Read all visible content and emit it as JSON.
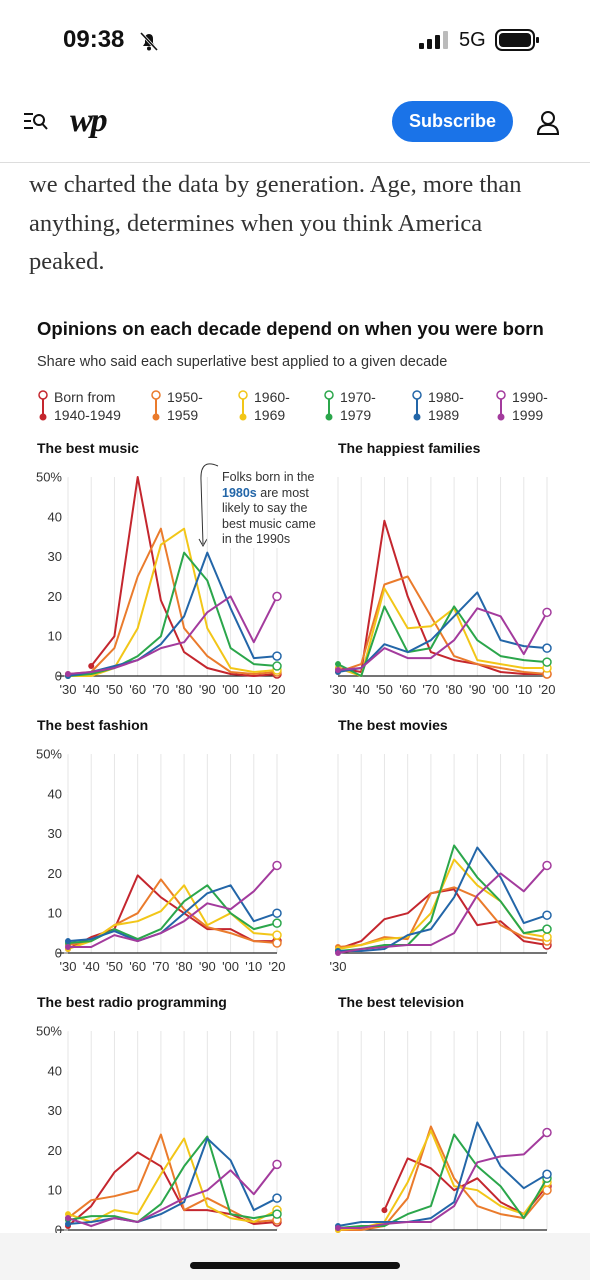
{
  "status_bar": {
    "time": "09:38",
    "network": "5G"
  },
  "nav": {
    "logo": "wp",
    "subscribe": "Subscribe"
  },
  "article": {
    "text": "we charted the data by generation. Age, more than anything, determines when you think America peaked."
  },
  "figure": {
    "title": "Opinions on each decade depend on when you were born",
    "subtitle": "Share who said each superlative best applied to a given decade",
    "legend": [
      {
        "name": "Born from 1940-1949",
        "color": "#c4262e"
      },
      {
        "name": "1950-1959",
        "color": "#ea7b2c"
      },
      {
        "name": "1960-1969",
        "color": "#f2c618"
      },
      {
        "name": "1970-1979",
        "color": "#2ba64b"
      },
      {
        "name": "1980-1989",
        "color": "#2366a8"
      },
      {
        "name": "1990-1999",
        "color": "#a33b9d"
      }
    ],
    "annotation": {
      "before": "Folks born in the",
      "highlight": "1980s",
      "after": "are most likely to say the best music came in the 1990s"
    }
  },
  "chart_data": [
    {
      "type": "line",
      "title": "The best music",
      "categories": [
        "'30",
        "'40",
        "'50",
        "'60",
        "'70",
        "'80",
        "'90",
        "'00",
        "'10",
        "'20"
      ],
      "ylim": [
        0,
        50
      ],
      "yticks": [
        0,
        10,
        20,
        30,
        40,
        {
          "value": 50,
          "label": "50%"
        }
      ],
      "series": [
        {
          "values": [
            null,
            2.5,
            10,
            50,
            19,
            6,
            2,
            0.5,
            0,
            0.5
          ]
        },
        {
          "values": [
            0.5,
            1,
            7,
            25,
            37,
            12,
            5,
            1,
            0.5,
            1
          ]
        },
        {
          "values": [
            0,
            0,
            2,
            12,
            33,
            37,
            12,
            2,
            1,
            1.5
          ]
        },
        {
          "values": [
            0,
            0.5,
            2,
            5,
            10,
            31,
            24,
            7,
            3,
            2.5
          ]
        },
        {
          "values": [
            0,
            1,
            2.5,
            4,
            8,
            15,
            31,
            17,
            4.5,
            5
          ]
        },
        {
          "values": [
            0.5,
            1,
            2,
            4,
            7,
            8.5,
            16,
            20,
            8.5,
            20
          ]
        }
      ]
    },
    {
      "type": "line",
      "title": "The happiest families",
      "categories": [
        "'30",
        "'40",
        "'50",
        "'60",
        "'70",
        "'80",
        "'90",
        "'00",
        "'10",
        "'20"
      ],
      "ylim": [
        0,
        50
      ],
      "series": [
        {
          "values": [
            2,
            1,
            39,
            20,
            6,
            4,
            3,
            1,
            0.5,
            0.5
          ]
        },
        {
          "values": [
            1,
            3,
            23,
            25,
            15,
            5,
            3,
            2,
            1,
            0.5
          ]
        },
        {
          "values": [
            2,
            0,
            22,
            12,
            12.5,
            17,
            4,
            3,
            2,
            2
          ]
        },
        {
          "values": [
            3,
            0,
            17.5,
            6,
            7,
            17.5,
            9,
            5,
            4,
            3.5
          ]
        },
        {
          "values": [
            1,
            2,
            8,
            6,
            9,
            15,
            21,
            9,
            7.5,
            7
          ]
        },
        {
          "values": [
            1.5,
            2,
            7,
            4.5,
            4.5,
            9,
            17,
            15,
            5.5,
            16
          ]
        }
      ]
    },
    {
      "type": "line",
      "title": "The best fashion",
      "categories": [
        "'30",
        "'40",
        "'50",
        "'60",
        "'70",
        "'80",
        "'90",
        "'00",
        "'10",
        "'20"
      ],
      "ylim": [
        0,
        50
      ],
      "yticks": [
        0,
        10,
        20,
        30,
        40,
        {
          "value": 50,
          "label": "50%"
        }
      ],
      "series": [
        {
          "values": [
            1,
            4,
            6,
            19.5,
            14,
            10,
            6,
            6,
            3,
            3
          ]
        },
        {
          "values": [
            2,
            3,
            7,
            10,
            18.5,
            11,
            6.5,
            5,
            3,
            2.5
          ]
        },
        {
          "values": [
            1,
            3,
            7,
            8,
            10.5,
            17,
            7,
            10,
            5,
            4.5
          ]
        },
        {
          "values": [
            2.5,
            3,
            6,
            3.5,
            6,
            13,
            17,
            10,
            6,
            7.5
          ]
        },
        {
          "values": [
            3,
            3.5,
            5.5,
            3,
            5,
            10,
            15,
            17,
            8,
            10
          ]
        },
        {
          "values": [
            1.5,
            1.5,
            4.5,
            3,
            5,
            8,
            12.5,
            11,
            15.5,
            22
          ]
        }
      ]
    },
    {
      "type": "line",
      "title": "The best movies",
      "categories": [
        "'30",
        null,
        null,
        null,
        null,
        null,
        null,
        null,
        null,
        null
      ],
      "ylim": [
        0,
        50
      ],
      "series": [
        {
          "values": [
            1,
            3,
            8.5,
            10,
            15,
            16,
            7,
            8,
            3,
            2
          ]
        },
        {
          "values": [
            1.5,
            2,
            4,
            3.5,
            15,
            16.5,
            14,
            7,
            4,
            3
          ]
        },
        {
          "values": [
            1,
            2,
            3.5,
            4,
            10,
            23.5,
            17,
            13,
            5,
            4
          ]
        },
        {
          "values": [
            0.5,
            1,
            2,
            2,
            8,
            27,
            19,
            13,
            5,
            6
          ]
        },
        {
          "values": [
            0.5,
            0.5,
            1,
            4.5,
            6,
            14,
            26.5,
            19,
            7.5,
            9.5
          ]
        },
        {
          "values": [
            0,
            1,
            1.5,
            2,
            2,
            5,
            14.5,
            20,
            15.5,
            22
          ]
        }
      ]
    },
    {
      "type": "line",
      "title": "The best radio programming",
      "categories": [
        null,
        null,
        null,
        null,
        null,
        null,
        null,
        null,
        null,
        null
      ],
      "ylim": [
        0,
        50
      ],
      "yticks": [
        0,
        10,
        20,
        30,
        40,
        {
          "value": 50,
          "label": "50%"
        }
      ],
      "series": [
        {
          "values": [
            1,
            6,
            14.5,
            19.5,
            16,
            5,
            5,
            4,
            1.5,
            2
          ]
        },
        {
          "values": [
            3,
            7.5,
            8.5,
            10,
            24,
            5,
            8,
            5,
            2,
            2.5
          ]
        },
        {
          "values": [
            4,
            2,
            5,
            4,
            14,
            23,
            6,
            3,
            2,
            5
          ]
        },
        {
          "values": [
            2.5,
            3.5,
            3.5,
            2,
            6.5,
            16,
            23.5,
            4,
            3,
            4
          ]
        },
        {
          "values": [
            1.5,
            2,
            3,
            2,
            4,
            7,
            23,
            17.5,
            5,
            8
          ]
        },
        {
          "values": [
            3,
            1,
            3,
            2,
            5,
            8,
            10,
            15,
            9,
            16.5
          ]
        }
      ]
    },
    {
      "type": "line",
      "title": "The best television",
      "categories": [
        null,
        null,
        null,
        null,
        null,
        null,
        null,
        null,
        null,
        null
      ],
      "ylim": [
        0,
        50
      ],
      "series": [
        {
          "values": [
            null,
            null,
            5,
            18,
            15.5,
            10,
            13,
            7,
            4,
            11
          ]
        },
        {
          "values": [
            0,
            0,
            1,
            8,
            26,
            13,
            6,
            4,
            3,
            10
          ]
        },
        {
          "values": [
            0,
            0.5,
            2,
            12,
            25,
            11,
            10,
            6,
            4,
            12
          ]
        },
        {
          "values": [
            0.5,
            1,
            1,
            4,
            6,
            24,
            16,
            11,
            3,
            13
          ]
        },
        {
          "values": [
            1,
            2,
            2,
            2,
            3,
            7,
            27,
            16,
            10.5,
            14
          ]
        },
        {
          "values": [
            0.5,
            0.5,
            1.5,
            2,
            2,
            6,
            17,
            18.5,
            19,
            24.5
          ]
        }
      ]
    }
  ]
}
